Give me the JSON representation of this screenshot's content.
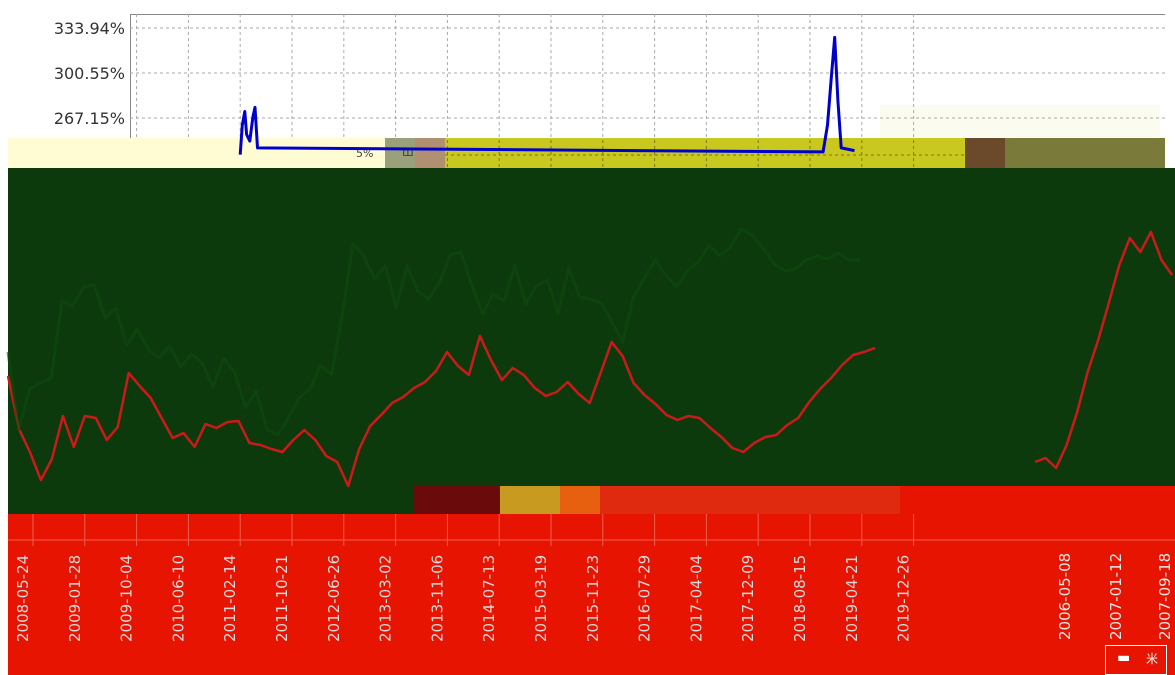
{
  "chart_data": {
    "type": "line",
    "ylim_top_panel": [
      233.76,
      333.94
    ],
    "y_ticks": [
      "333.94%",
      "300.55%",
      "267.15%"
    ],
    "x_tick_labels": [
      "2008-05-24",
      "2009-01-28",
      "2009-10-04",
      "2010-06-10",
      "2011-02-14",
      "2011-10-21",
      "2012-06-26",
      "2013-03-02",
      "2013-11-06",
      "2014-07-13",
      "2015-03-19",
      "2015-11-23",
      "2016-07-29",
      "2017-04-04",
      "2017-12-09",
      "2018-08-15",
      "2019-04-21",
      "2019-12-26"
    ],
    "x_tick_labels_right": [
      "2006-05-08",
      "2007-01-12",
      "2007-09-18"
    ],
    "grid": true,
    "series": [
      {
        "color": "#0000cc",
        "points": [
          [
            "2011-03-10",
            240
          ],
          [
            "2011-03-20",
            262
          ],
          [
            "2011-04-01",
            272
          ],
          [
            "2011-04-10",
            255
          ],
          [
            "2011-04-25",
            250
          ],
          [
            "2011-05-10",
            268
          ],
          [
            "2011-05-20",
            275
          ],
          [
            "2011-06-01",
            245
          ],
          [
            "2018-11-10",
            242
          ],
          [
            "2018-12-01",
            262
          ],
          [
            "2018-12-20",
            298
          ],
          [
            "2019-01-05",
            327
          ],
          [
            "2019-01-20",
            280
          ],
          [
            "2019-02-05",
            245
          ],
          [
            "2019-04-10",
            243
          ]
        ]
      }
    ],
    "obscured_series": [
      {
        "color": "#cc1a1a",
        "values": [
          376,
          429,
          452,
          480,
          459,
          416,
          447,
          416,
          418,
          440,
          427,
          373,
          386,
          398,
          418,
          438,
          433,
          447,
          424,
          428,
          422,
          421,
          443,
          445,
          449,
          452,
          440,
          430,
          440,
          456,
          462,
          486,
          449,
          426,
          415,
          403,
          397,
          388,
          382,
          371,
          352,
          366,
          375,
          336,
          360,
          380,
          368,
          375,
          388,
          396,
          392,
          382,
          394,
          403,
          373,
          342,
          356,
          383,
          395,
          404,
          415,
          420,
          416,
          418,
          428,
          437,
          448,
          452,
          443,
          437,
          435,
          425,
          418,
          402,
          389,
          378,
          365,
          355,
          352,
          348
        ]
      },
      {
        "color": "#0e4a0e",
        "values": [
          352,
          430,
          389,
          383,
          378,
          301,
          306,
          287,
          285,
          318,
          308,
          345,
          329,
          349,
          358,
          346,
          367,
          354,
          363,
          387,
          358,
          372,
          408,
          391,
          429,
          435,
          418,
          398,
          389,
          365,
          375,
          315,
          244,
          256,
          279,
          266,
          308,
          266,
          291,
          299,
          282,
          255,
          252,
          285,
          314,
          294,
          301,
          265,
          304,
          286,
          280,
          313,
          268,
          297,
          299,
          303,
          322,
          342,
          297,
          278,
          260,
          275,
          287,
          271,
          262,
          245,
          256,
          247,
          229,
          235,
          248,
          263,
          271,
          269,
          260,
          256,
          259,
          253,
          260,
          260
        ]
      },
      {
        "color": "#cc1a1a",
        "values": [
          462,
          458,
          468,
          445,
          412,
          372,
          340,
          303,
          265,
          238,
          252,
          232,
          260,
          275
        ]
      }
    ]
  },
  "legend": {
    "icon_glyph": "▬",
    "right_glyph": "米"
  },
  "glitch_text": {
    "a": "5%",
    "b": "Ш"
  },
  "colors": {
    "page_bg": "#ffffff",
    "plot_border": "#888888",
    "grid": "#aaaaaa",
    "dark_green_block": "#0d3a0d",
    "red_block": "#e61400",
    "yellow_band": "#c8c81e",
    "cream_band": "#fffbd2"
  }
}
